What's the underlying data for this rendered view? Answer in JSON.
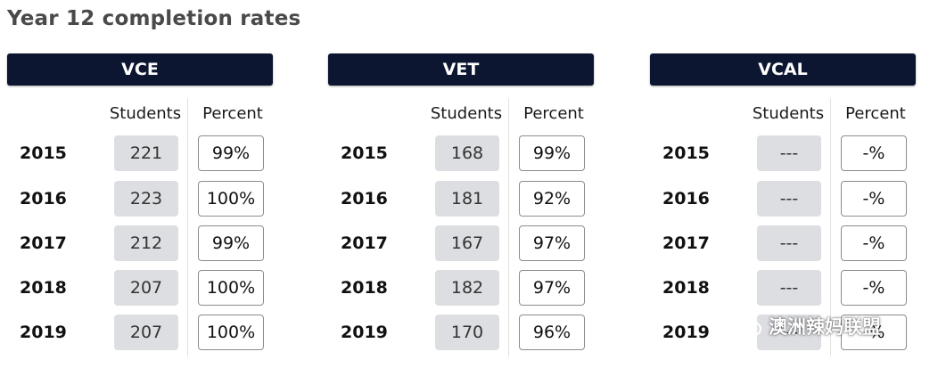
{
  "title": "Year 12 completion rates",
  "column_headers": {
    "students": "Students",
    "percent": "Percent"
  },
  "panels": [
    {
      "name": "VCE",
      "rows": [
        {
          "year": "2015",
          "students": "221",
          "percent": "99%"
        },
        {
          "year": "2016",
          "students": "223",
          "percent": "100%"
        },
        {
          "year": "2017",
          "students": "212",
          "percent": "99%"
        },
        {
          "year": "2018",
          "students": "207",
          "percent": "100%"
        },
        {
          "year": "2019",
          "students": "207",
          "percent": "100%"
        }
      ]
    },
    {
      "name": "VET",
      "rows": [
        {
          "year": "2015",
          "students": "168",
          "percent": "99%"
        },
        {
          "year": "2016",
          "students": "181",
          "percent": "92%"
        },
        {
          "year": "2017",
          "students": "167",
          "percent": "97%"
        },
        {
          "year": "2018",
          "students": "182",
          "percent": "97%"
        },
        {
          "year": "2019",
          "students": "170",
          "percent": "96%"
        }
      ]
    },
    {
      "name": "VCAL",
      "rows": [
        {
          "year": "2015",
          "students": "---",
          "percent": "-%"
        },
        {
          "year": "2016",
          "students": "---",
          "percent": "-%"
        },
        {
          "year": "2017",
          "students": "---",
          "percent": "-%"
        },
        {
          "year": "2018",
          "students": "---",
          "percent": "-%"
        },
        {
          "year": "2019",
          "students": "---",
          "percent": "-%"
        }
      ]
    }
  ],
  "watermark": {
    "text": "澳洲辣妈联盟",
    "icon": "wechat-icon"
  },
  "colors": {
    "header_bg": "#0d1631",
    "students_box": "#dcdee2",
    "percent_border": "#8c8c8c"
  }
}
